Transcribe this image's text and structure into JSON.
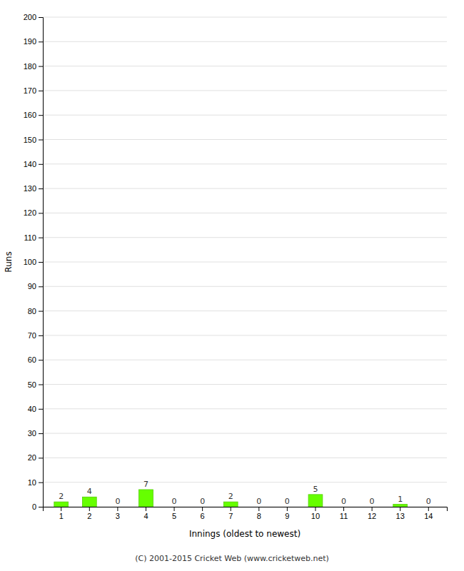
{
  "chart_data": {
    "type": "bar",
    "categories": [
      "1",
      "2",
      "3",
      "4",
      "5",
      "6",
      "7",
      "8",
      "9",
      "10",
      "11",
      "12",
      "13",
      "14"
    ],
    "values": [
      2,
      4,
      0,
      7,
      0,
      0,
      2,
      0,
      0,
      5,
      0,
      0,
      1,
      0
    ],
    "color": "#66ff00",
    "xlabel": "Innings (oldest to newest)",
    "ylabel": "Runs",
    "ylim": [
      0,
      200
    ],
    "yticks": [
      0,
      10,
      20,
      30,
      40,
      50,
      60,
      70,
      80,
      90,
      100,
      110,
      120,
      130,
      140,
      150,
      160,
      170,
      180,
      190,
      200
    ],
    "grid": true,
    "data_labels": true,
    "annotation": "(C) 2001-2015 Cricket Web (www.cricketweb.net)"
  }
}
